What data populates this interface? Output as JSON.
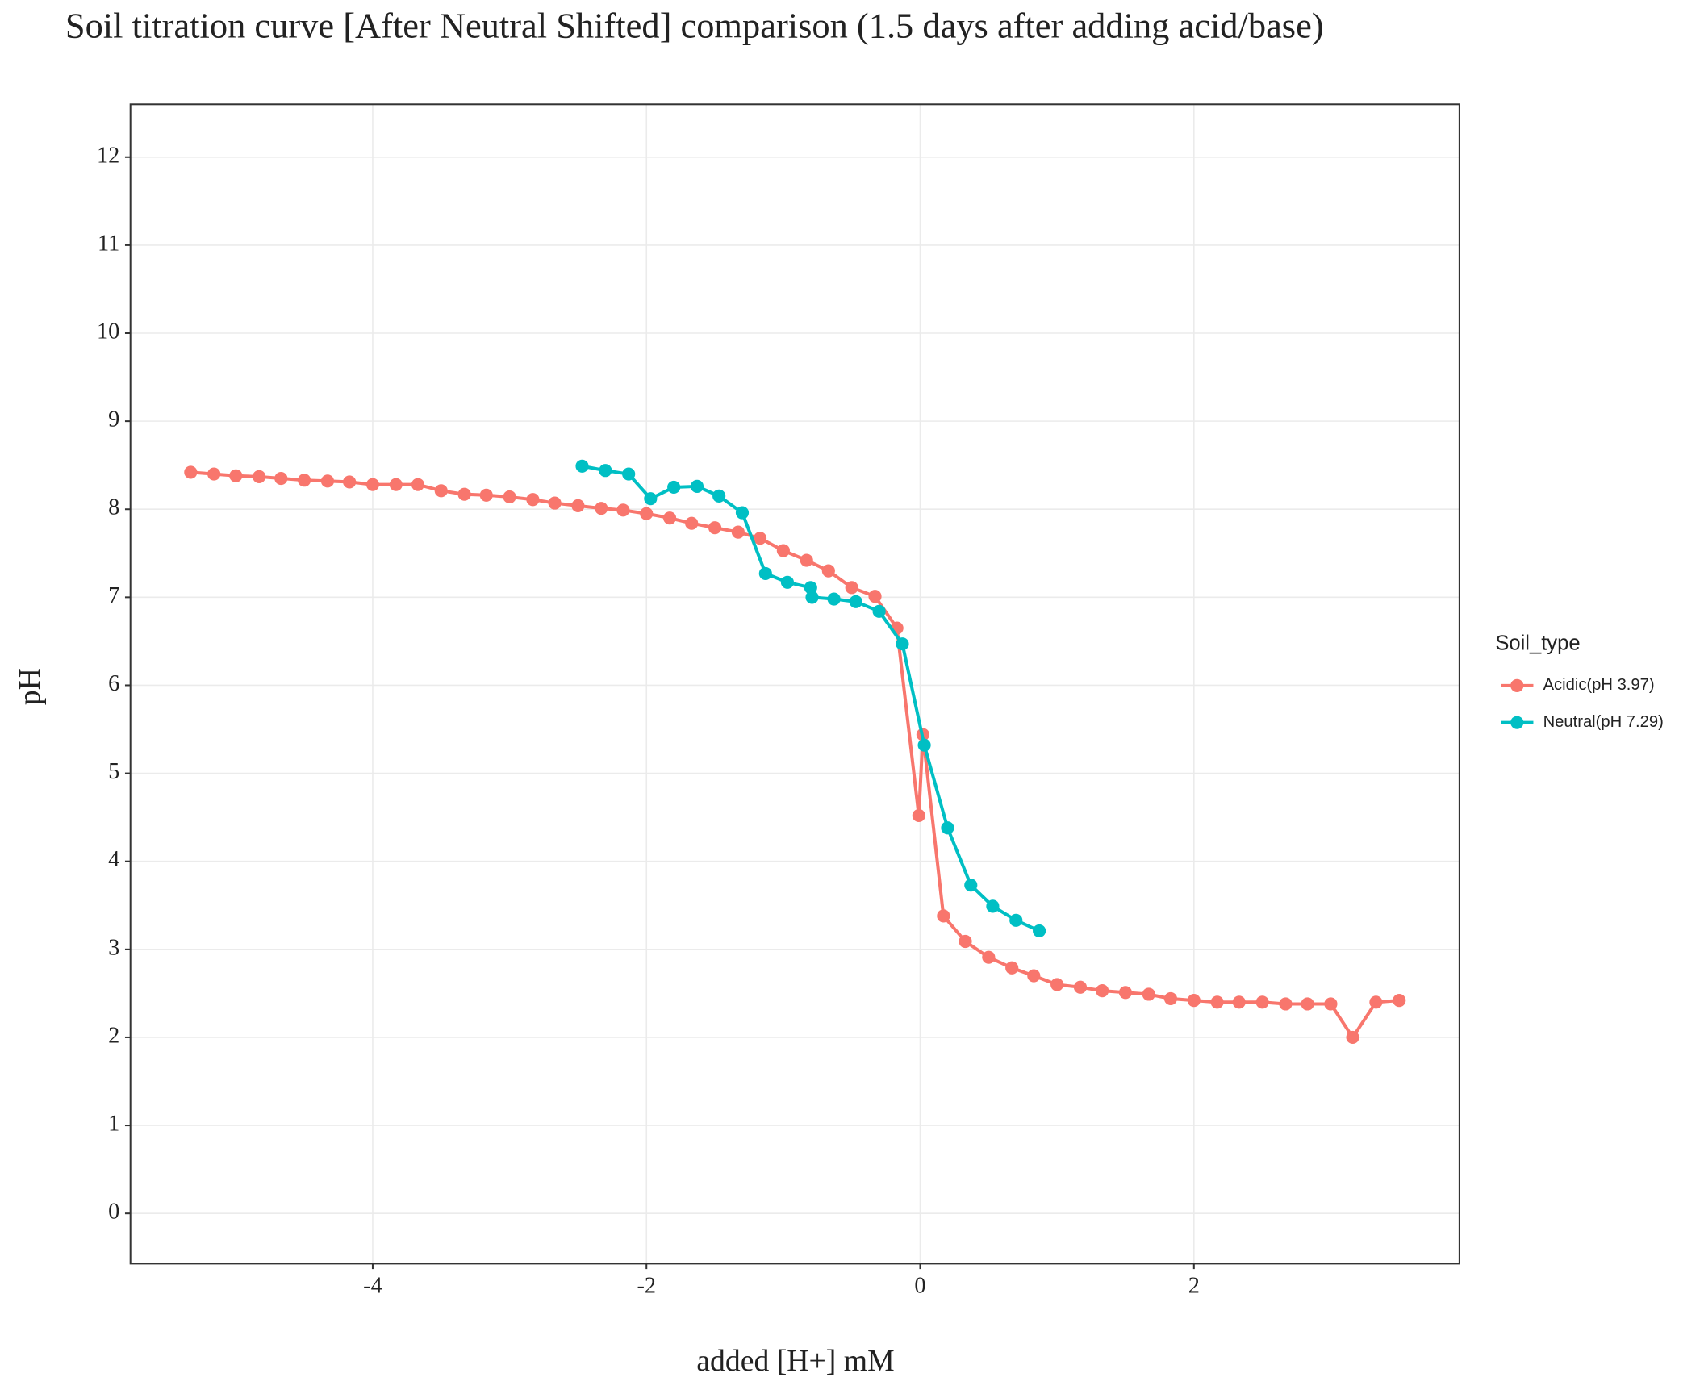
{
  "chart_data": {
    "type": "line",
    "title": "Soil titration curve [After Neutral Shifted] comparison (1.5 days after adding acid/base)",
    "xlabel": "added [H+] mM",
    "ylabel": "pH",
    "legend_title": "Soil_type",
    "legend": "right",
    "grid": true,
    "xlim": [
      -5.77,
      3.94
    ],
    "xticks": [
      -4,
      -2,
      0,
      2
    ],
    "ylim": [
      -0.57,
      12.6
    ],
    "yticks": [
      0,
      1,
      2,
      3,
      4,
      5,
      6,
      7,
      8,
      9,
      10,
      11,
      12
    ],
    "series": [
      {
        "name": "Acidic(pH 3.97)",
        "color": "#f8766d",
        "x": [
          -5.33,
          -5.16,
          -5.0,
          -4.83,
          -4.67,
          -4.5,
          -4.33,
          -4.17,
          -4.0,
          -3.83,
          -3.67,
          -3.5,
          -3.33,
          -3.17,
          -3.0,
          -2.83,
          -2.67,
          -2.5,
          -2.33,
          -2.17,
          -2.0,
          -1.83,
          -1.67,
          -1.5,
          -1.33,
          -1.17,
          -1.0,
          -0.83,
          -0.67,
          -0.5,
          -0.33,
          -0.17,
          -0.01,
          0.02,
          0.17,
          0.33,
          0.5,
          0.67,
          0.83,
          1.0,
          1.17,
          1.33,
          1.5,
          1.67,
          1.83,
          2.0,
          2.17,
          2.33,
          2.5,
          2.67,
          2.83,
          3.0,
          3.16,
          3.33,
          3.5
        ],
        "values": [
          8.42,
          8.4,
          8.38,
          8.37,
          8.35,
          8.33,
          8.32,
          8.31,
          8.28,
          8.28,
          8.28,
          8.21,
          8.17,
          8.16,
          8.14,
          8.11,
          8.07,
          8.04,
          8.01,
          7.99,
          7.95,
          7.9,
          7.84,
          7.79,
          7.74,
          7.67,
          7.53,
          7.42,
          7.3,
          7.11,
          7.01,
          6.65,
          4.52,
          5.44,
          3.38,
          3.09,
          2.91,
          2.79,
          2.7,
          2.6,
          2.57,
          2.53,
          2.51,
          2.49,
          2.44,
          2.42,
          2.4,
          2.4,
          2.4,
          2.38,
          2.38,
          2.38,
          2.0,
          2.4,
          2.42
        ]
      },
      {
        "name": "Neutral(pH 7.29)",
        "color": "#00bfc4",
        "x": [
          -2.47,
          -2.3,
          -2.13,
          -1.97,
          -1.8,
          -1.63,
          -1.47,
          -1.3,
          -1.13,
          -0.97,
          -0.8,
          -0.79,
          -0.63,
          -0.47,
          -0.3,
          -0.13,
          0.03,
          0.2,
          0.37,
          0.53,
          0.7,
          0.87
        ],
        "values": [
          8.49,
          8.44,
          8.4,
          8.12,
          8.25,
          8.26,
          8.15,
          7.96,
          7.27,
          7.17,
          7.11,
          7.0,
          6.98,
          6.95,
          6.84,
          6.47,
          5.32,
          4.38,
          3.73,
          3.49,
          3.33,
          3.21
        ]
      }
    ]
  }
}
